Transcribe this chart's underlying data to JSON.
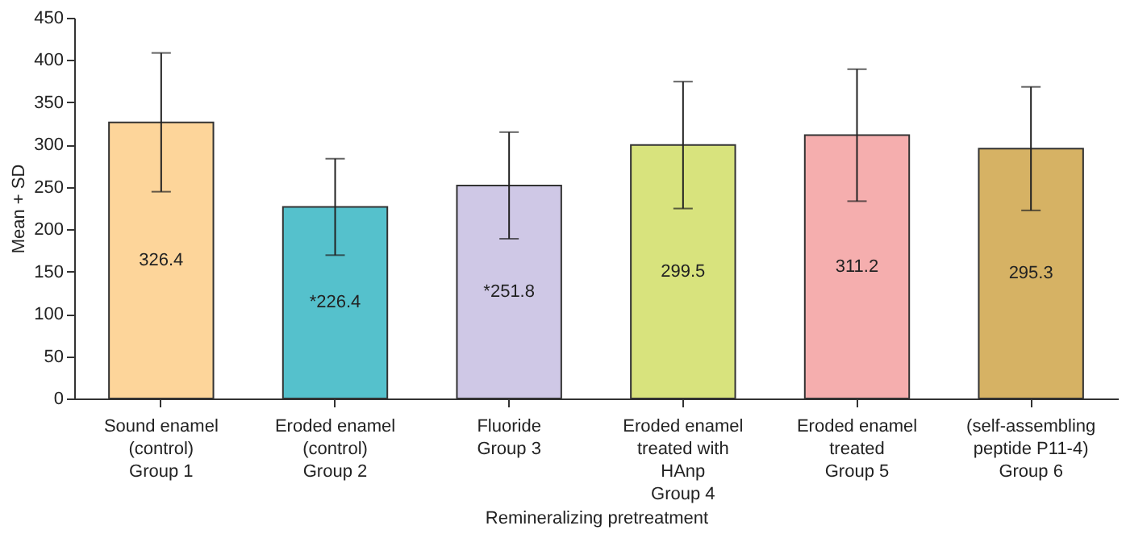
{
  "chart_data": {
    "type": "bar",
    "xlabel": "Remineralizing pretreatment",
    "ylabel": "Mean + SD",
    "categories": [
      "Sound enamel\n(control)\n\nGroup 1",
      "Eroded enamel\n(control)\n\nGroup 2",
      "Fluoride\n\n\nGroup 3",
      "Eroded enamel\ntreated with\nHAnp\nGroup 4",
      "Eroded enamel\ntreated\n\nGroup 5",
      "(self-assembling\npeptide P11-4)\n\nGroup 6"
    ],
    "values": [
      326.4,
      226.4,
      251.8,
      299.5,
      311.2,
      295.3
    ],
    "errors": [
      82,
      57,
      63,
      75,
      78,
      73
    ],
    "colors": [
      "#fdd59a",
      "#55c1cc",
      "#cfc8e6",
      "#d8e37d",
      "#f5aeae",
      "#d6b264"
    ],
    "value_labels": [
      "326.4",
      "*226.4",
      "*251.8",
      "299.5",
      "311.2",
      "295.3"
    ],
    "ylim": [
      0,
      450
    ],
    "yticks": [
      0,
      50,
      100,
      150,
      200,
      250,
      300,
      350,
      400,
      450
    ],
    "grid": false
  }
}
